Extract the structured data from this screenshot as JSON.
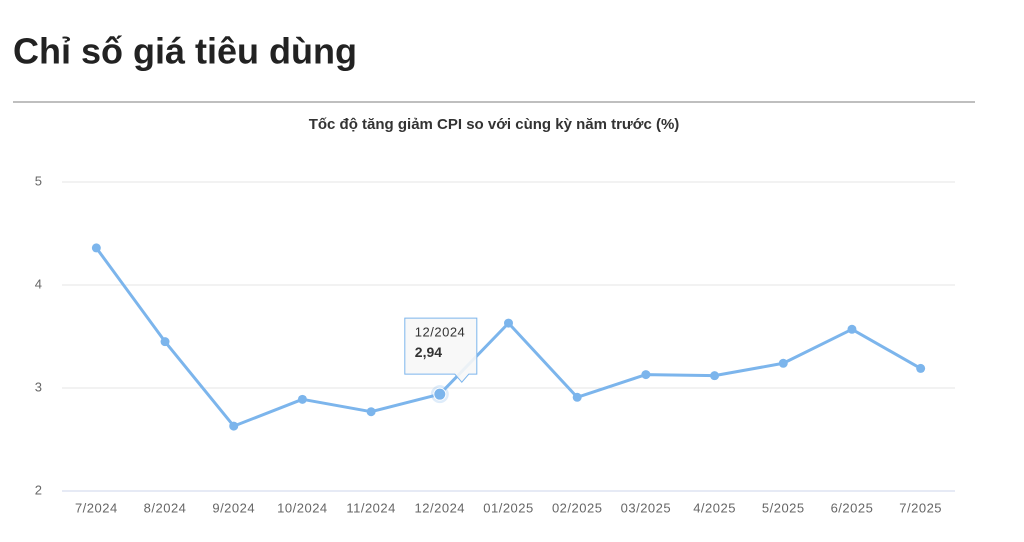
{
  "header": {
    "title": "Chỉ số giá tiêu dùng"
  },
  "chart_data": {
    "type": "line",
    "title": "Tốc độ tăng giảm CPI so với cùng kỳ năm trước (%)",
    "categories": [
      "7/2024",
      "8/2024",
      "9/2024",
      "10/2024",
      "11/2024",
      "12/2024",
      "01/2025",
      "02/2025",
      "03/2025",
      "4/2025",
      "5/2025",
      "6/2025",
      "7/2025"
    ],
    "series": [
      {
        "color": "#7cb5ec",
        "values": [
          4.36,
          3.45,
          2.63,
          2.89,
          2.77,
          2.94,
          3.63,
          2.91,
          3.13,
          3.12,
          3.24,
          3.57,
          3.19
        ],
        "value_labels": [
          null,
          null,
          null,
          null,
          null,
          "2,94",
          null,
          null,
          null,
          null,
          null,
          null,
          null
        ]
      }
    ],
    "ylim": [
      2,
      5
    ],
    "yticks": [
      2,
      3,
      4,
      5
    ],
    "grid": true
  }
}
